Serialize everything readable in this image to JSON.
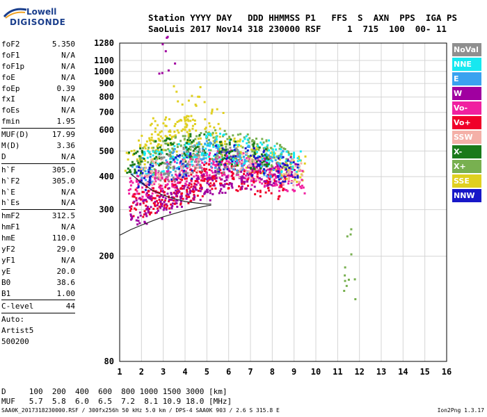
{
  "header": {
    "line1": "Station YYYY DAY   DDD HHMMSS P1   FFS  S  AXN  PPS  IGA PS",
    "line2": "SaoLuis 2017 Nov14 318 230000 RSF     1  715  100  00- 11"
  },
  "logo": {
    "top": "Lowell",
    "bottom": "DIGISONDE"
  },
  "params": [
    {
      "label": "foF2",
      "value": "5.350"
    },
    {
      "label": "foF1",
      "value": "N/A"
    },
    {
      "label": "foF1p",
      "value": "N/A"
    },
    {
      "label": "foE",
      "value": "N/A"
    },
    {
      "label": "foEp",
      "value": "0.39"
    },
    {
      "label": "fxI",
      "value": "N/A"
    },
    {
      "label": "foEs",
      "value": "N/A"
    },
    {
      "label": "fmin",
      "value": "1.95"
    },
    {
      "sep": true
    },
    {
      "label": "MUF(D)",
      "value": "17.99"
    },
    {
      "label": "M(D)",
      "value": "3.36"
    },
    {
      "label": "D",
      "value": "N/A"
    },
    {
      "sep": true
    },
    {
      "label": "h`F",
      "value": "305.0"
    },
    {
      "label": "h`F2",
      "value": "305.0"
    },
    {
      "label": "h`E",
      "value": "N/A"
    },
    {
      "label": "h`Es",
      "value": "N/A"
    },
    {
      "sep": true
    },
    {
      "label": "hmF2",
      "value": "312.5"
    },
    {
      "label": "hmF1",
      "value": "N/A"
    },
    {
      "label": "hmE",
      "value": "110.0"
    },
    {
      "label": "yF2",
      "value": "29.0"
    },
    {
      "label": "yF1",
      "value": "N/A"
    },
    {
      "label": "yE",
      "value": "20.0"
    },
    {
      "label": "B0",
      "value": "38.6"
    },
    {
      "label": "B1",
      "value": "1.00"
    },
    {
      "sep": true
    },
    {
      "label": "C-level",
      "value": "44"
    },
    {
      "sep": true
    },
    {
      "label": "Auto:",
      "value": ""
    },
    {
      "label": "Artist5",
      "value": ""
    },
    {
      "label": "500200",
      "value": ""
    }
  ],
  "legend": [
    {
      "label": "NoVal",
      "color": "#8f8f8f"
    },
    {
      "label": "NNE",
      "color": "#17e8f0"
    },
    {
      "label": "E",
      "color": "#3aa2f0"
    },
    {
      "label": "W",
      "color": "#a000a0"
    },
    {
      "label": "Vo-",
      "color": "#f020a0"
    },
    {
      "label": "Vo+",
      "color": "#f0002a"
    },
    {
      "label": "SSW",
      "color": "#f4b0a8"
    },
    {
      "label": "X-",
      "color": "#1a7a1a"
    },
    {
      "label": "X+",
      "color": "#78b050"
    },
    {
      "label": "SSE",
      "color": "#e0d020"
    },
    {
      "label": "NNW",
      "color": "#1818c8"
    }
  ],
  "mufTable": {
    "row1": "D     100  200  400  600  800 1000 1500 3000 [km]",
    "row2": "MUF   5.7  5.8  6.0  6.5  7.2  8.1 10.9 18.0 [MHz]"
  },
  "footer": {
    "left": "SAA0K_2017318230000.RSF / 300fx256h 50 kHz 5.0 km / DPS-4 SAA0K 903 / 2.6 S 315.8 E",
    "right": "Ion2Png 1.3.17"
  },
  "chart_data": {
    "type": "scatter",
    "title": "",
    "xlabel": "",
    "ylabel": "",
    "xlim": [
      1,
      16
    ],
    "ylim": [
      80,
      1280
    ],
    "yscale": "log",
    "xticks": [
      1,
      2,
      3,
      4,
      5,
      6,
      7,
      8,
      9,
      10,
      11,
      12,
      13,
      14,
      15,
      16
    ],
    "yticks": [
      80,
      200,
      300,
      400,
      500,
      600,
      700,
      800,
      900,
      1000,
      1100,
      1280
    ],
    "grid": true,
    "legend_position": "right",
    "series": [
      {
        "name": "SSE",
        "color": "#e0d020",
        "x": [
          1.7,
          2.3,
          3.1,
          3.8,
          4.4,
          5.2,
          6.1,
          6.8,
          7.6,
          8.3,
          9.0,
          3.5,
          4.2,
          4.9,
          5.6,
          2.8,
          4.0
        ],
        "y": [
          470,
          520,
          560,
          610,
          600,
          580,
          500,
          470,
          460,
          440,
          430,
          790,
          840,
          760,
          690,
          600,
          720
        ]
      },
      {
        "name": "Vo-",
        "color": "#f020a0",
        "x": [
          1.8,
          2.2,
          2.7,
          3.2,
          3.6,
          4.1,
          4.6,
          5.1,
          5.5,
          6.0,
          6.5,
          7.0,
          7.5,
          8.0,
          8.5,
          9.0
        ],
        "y": [
          360,
          370,
          380,
          400,
          410,
          420,
          430,
          440,
          450,
          450,
          440,
          430,
          420,
          410,
          400,
          390
        ]
      },
      {
        "name": "Vo+",
        "color": "#f0002a",
        "x": [
          1.9,
          2.4,
          2.9,
          3.4,
          3.9,
          4.4,
          4.9,
          5.4,
          6.3,
          7.3,
          8.2
        ],
        "y": [
          320,
          330,
          340,
          350,
          360,
          380,
          400,
          420,
          400,
          380,
          370
        ]
      },
      {
        "name": "W",
        "color": "#a000a0",
        "x": [
          1.8,
          2.6,
          3.3,
          4.0,
          4.7,
          5.4,
          6.2,
          7.0,
          7.8,
          8.6,
          3.0,
          3.2
        ],
        "y": [
          300,
          310,
          330,
          350,
          370,
          390,
          410,
          400,
          420,
          430,
          1260,
          1000
        ]
      },
      {
        "name": "X+",
        "color": "#78b050",
        "x": [
          2.1,
          3.0,
          3.9,
          4.8,
          5.7,
          6.6,
          7.5,
          8.4,
          11.5,
          11.5,
          11.5
        ],
        "y": [
          460,
          490,
          510,
          530,
          540,
          520,
          500,
          480,
          230,
          180,
          150
        ]
      },
      {
        "name": "NNE",
        "color": "#17e8f0",
        "x": [
          2.5,
          3.7,
          4.5,
          5.3,
          6.4,
          7.7,
          8.8
        ],
        "y": [
          450,
          480,
          500,
          520,
          510,
          490,
          460
        ]
      },
      {
        "name": "E",
        "color": "#3aa2f0",
        "x": [
          2.0,
          3.5,
          5.0,
          6.5,
          8.0
        ],
        "y": [
          430,
          460,
          490,
          470,
          450
        ]
      },
      {
        "name": "NNW",
        "color": "#1818c8",
        "x": [
          2.2,
          3.8,
          5.8,
          7.2,
          8.7
        ],
        "y": [
          400,
          440,
          470,
          460,
          430
        ]
      },
      {
        "name": "X-",
        "color": "#1a7a1a",
        "x": [
          1.6,
          3.0,
          4.4,
          6.0,
          7.4
        ],
        "y": [
          470,
          500,
          520,
          500,
          480
        ]
      },
      {
        "name": "SSW",
        "color": "#f4b0a8",
        "x": [
          2.4,
          4.2,
          6.9,
          8.9
        ],
        "y": [
          420,
          450,
          440,
          420
        ]
      },
      {
        "name": "NoVal",
        "color": "#8f8f8f",
        "x": [
          3.1,
          4.3,
          5.9
        ],
        "y": [
          440,
          470,
          460
        ]
      }
    ],
    "profile_curve": {
      "x": [
        1,
        1.5,
        2,
        2.5,
        3,
        3.5,
        4,
        4.5,
        5,
        5.2
      ],
      "y": [
        240,
        252,
        262,
        272,
        282,
        290,
        298,
        304,
        310,
        312
      ]
    },
    "profile_curve_2": {
      "x": [
        1.5,
        2,
        2.5,
        3,
        3.5,
        4,
        4.5,
        5,
        5.2
      ],
      "y": [
        410,
        380,
        355,
        340,
        330,
        322,
        318,
        315,
        315
      ]
    }
  }
}
